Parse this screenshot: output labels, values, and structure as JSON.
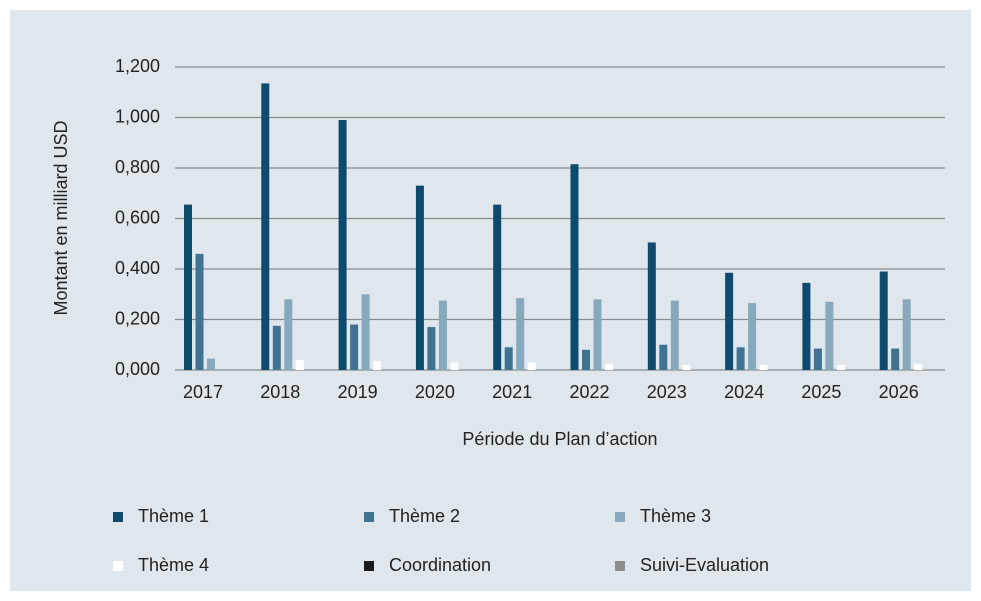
{
  "chart_data": {
    "type": "bar",
    "y_label": "Montant en milliard USD",
    "x_label": "Période du Plan d’action",
    "categories": [
      "2017",
      "2018",
      "2019",
      "2020",
      "2021",
      "2022",
      "2023",
      "2024",
      "2025",
      "2026"
    ],
    "series": [
      {
        "name": "Thème 1",
        "color": "#0d4a6e",
        "values": [
          0.655,
          1.135,
          0.99,
          0.73,
          0.655,
          0.815,
          0.505,
          0.385,
          0.345,
          0.39
        ]
      },
      {
        "name": "Thème 2",
        "color": "#3f7391",
        "values": [
          0.46,
          0.175,
          0.18,
          0.17,
          0.09,
          0.08,
          0.1,
          0.09,
          0.085,
          0.085
        ]
      },
      {
        "name": "Thème 3",
        "color": "#86a9bd",
        "values": [
          0.045,
          0.28,
          0.3,
          0.275,
          0.285,
          0.28,
          0.275,
          0.265,
          0.27,
          0.28
        ]
      },
      {
        "name": "Thème 4",
        "color": "#ffffff",
        "values": [
          0,
          0.04,
          0.035,
          0.03,
          0.03,
          0.025,
          0.02,
          0.02,
          0.02,
          0.025
        ]
      },
      {
        "name": "Coordination",
        "color": "#1a1a1a",
        "values": [
          0,
          0,
          0,
          0,
          0,
          0,
          0,
          0,
          0,
          0
        ]
      },
      {
        "name": "Suivi-Evaluation",
        "color": "#8c8c8c",
        "values": [
          0,
          0,
          0,
          0,
          0,
          0,
          0,
          0,
          0,
          0
        ]
      }
    ],
    "ylim": [
      0,
      1.2
    ],
    "yticks": [
      {
        "value": 0,
        "label": "0,000"
      },
      {
        "value": 0.2,
        "label": "0,200"
      },
      {
        "value": 0.4,
        "label": "0,400"
      },
      {
        "value": 0.6,
        "label": "0,600"
      },
      {
        "value": 0.8,
        "label": "0,800"
      },
      {
        "value": 1,
        "label": "1,000"
      },
      {
        "value": 1.2,
        "label": "1,200"
      }
    ],
    "grid": true
  }
}
